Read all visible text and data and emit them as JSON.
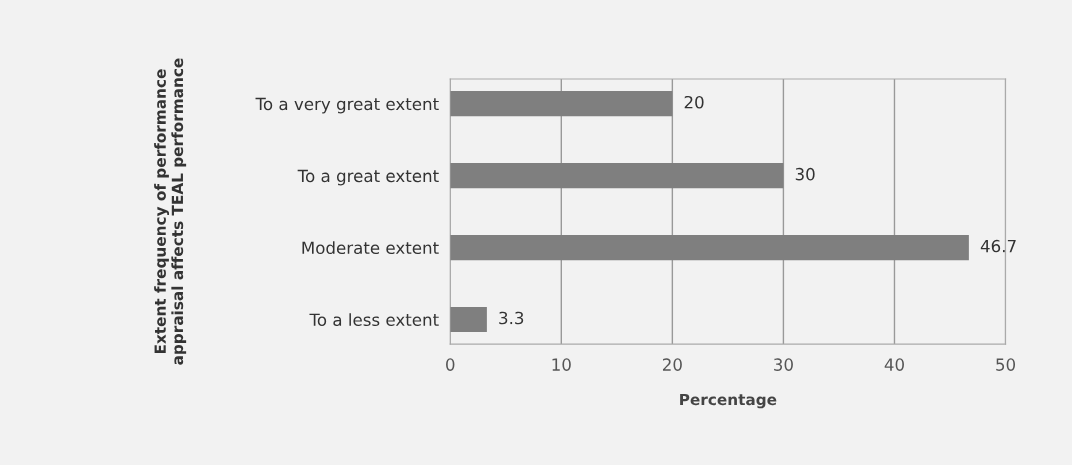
{
  "chart_data": {
    "type": "bar",
    "orientation": "horizontal",
    "categories": [
      "To a very great extent",
      "To a great extent",
      "Moderate extent",
      "To a less extent"
    ],
    "values": [
      20,
      30,
      46.7,
      3.3
    ],
    "color": "#7f7f7f",
    "xlabel": "Percentage",
    "ylabel": "Extent frequency of performance\nappraisal affects TEAL performance",
    "xlim": [
      0,
      50
    ],
    "xticks": [
      0,
      10,
      20,
      30,
      40,
      50
    ],
    "grid": "x",
    "data_labels": true
  }
}
